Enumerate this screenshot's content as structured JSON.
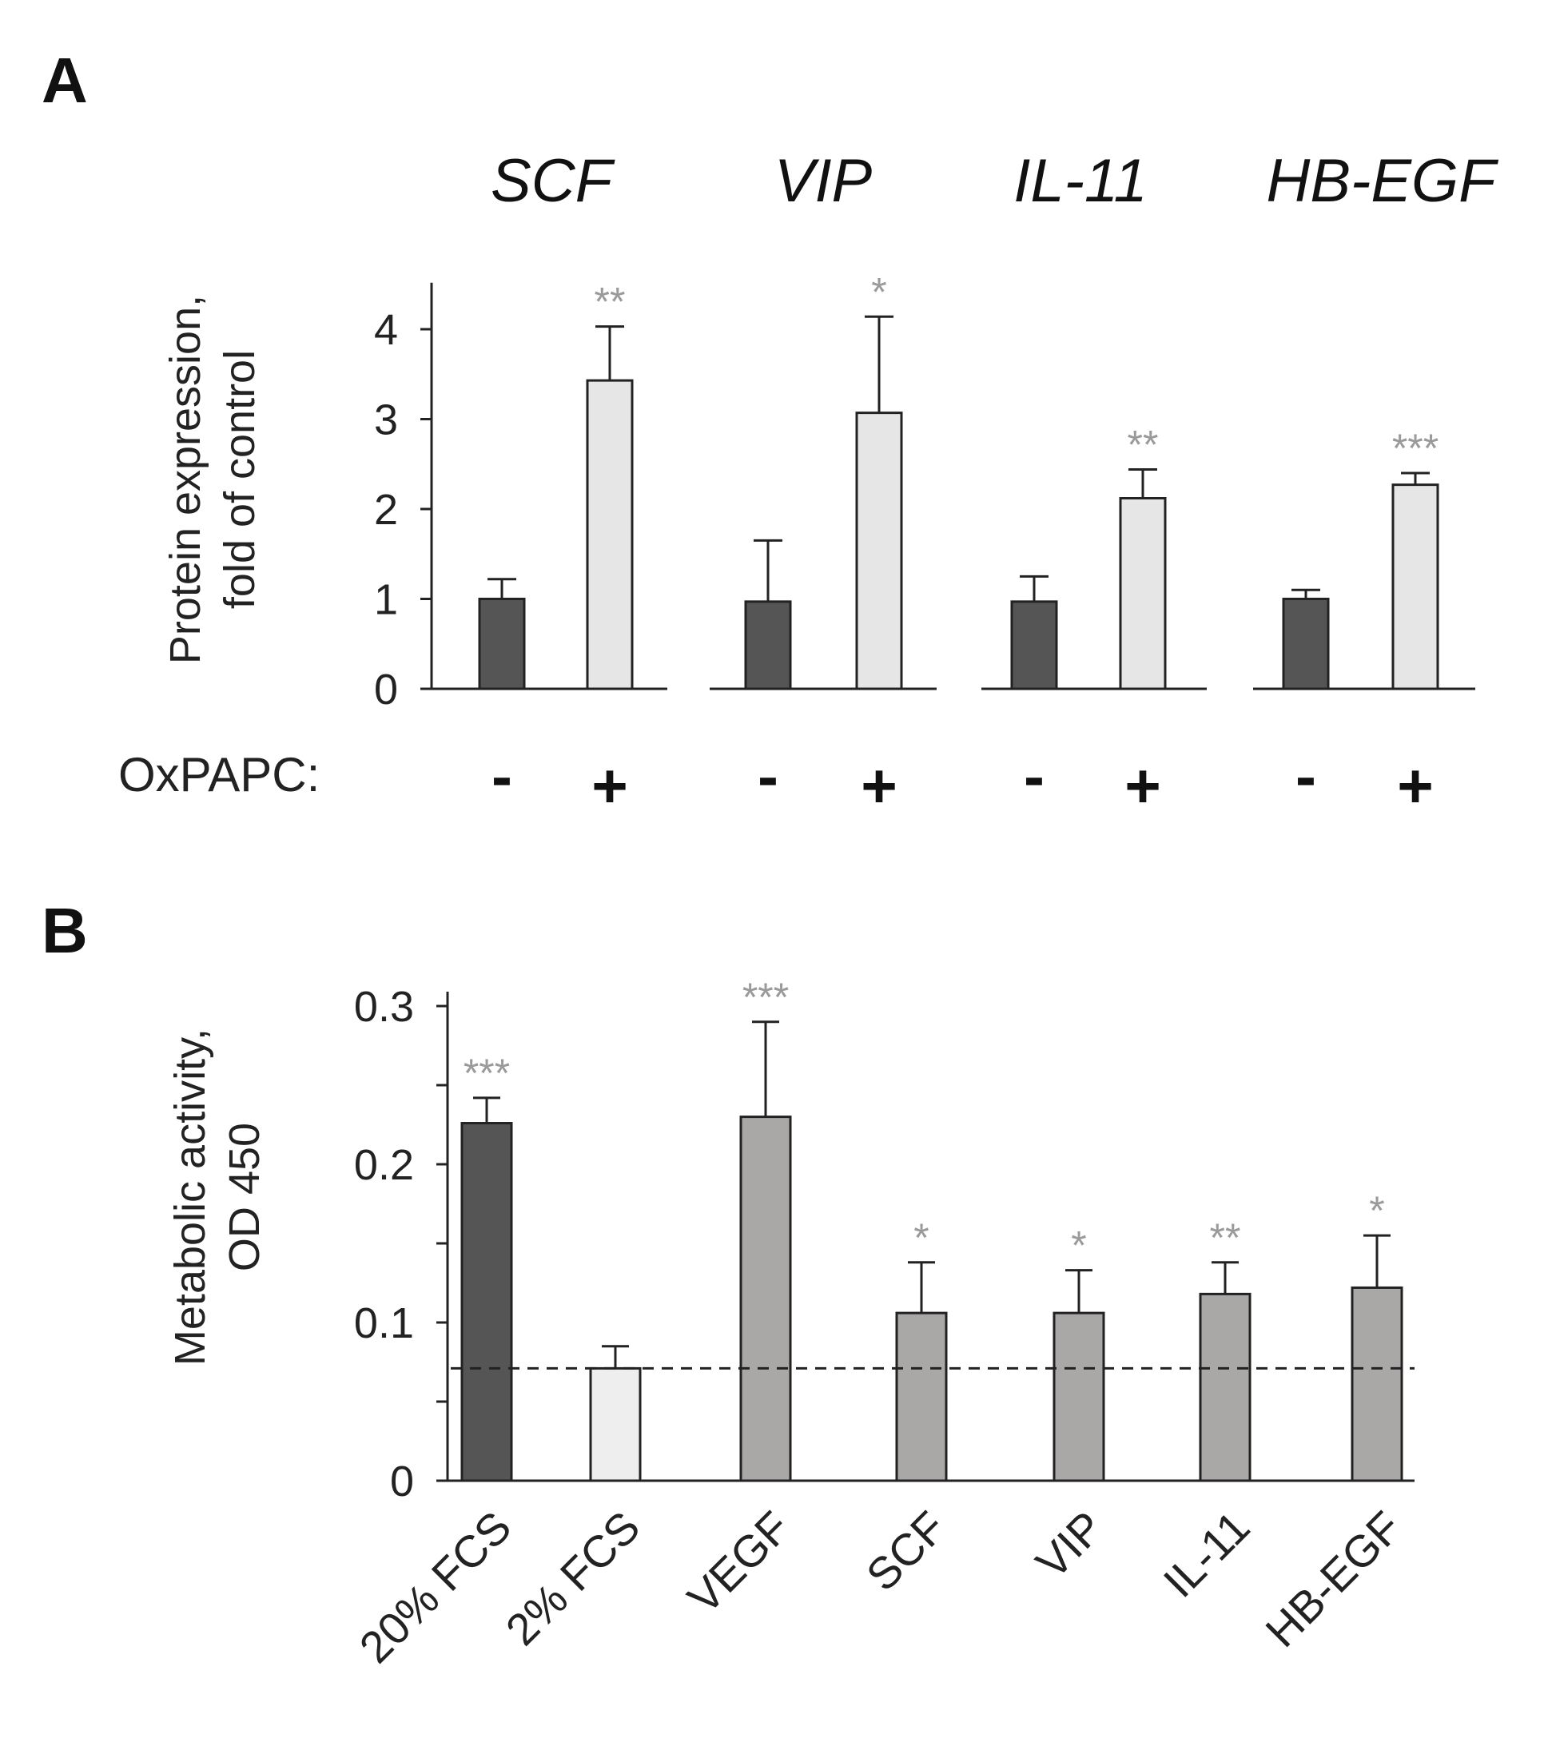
{
  "chart_data": [
    {
      "panel": "A",
      "type": "bar",
      "groups": [
        "SCF",
        "VIP",
        "IL-11",
        "HB-EGF"
      ],
      "condition_label": "OxPAPC:",
      "conditions": [
        "-",
        "+"
      ],
      "ylabel_lines": [
        "Protein expression,",
        "fold of control"
      ],
      "ylim": [
        0,
        4.5
      ],
      "yticks": [
        0,
        1,
        2,
        3,
        4
      ],
      "ytick_labels": [
        "0",
        "1",
        "2",
        "3",
        "4"
      ],
      "series": [
        {
          "name": "-",
          "color": "#555555",
          "values": [
            1.0,
            0.97,
            0.97,
            1.0
          ],
          "errors": [
            0.22,
            0.68,
            0.28,
            0.1
          ]
        },
        {
          "name": "+",
          "color": "#e6e6e6",
          "values": [
            3.43,
            3.07,
            2.12,
            2.27
          ],
          "errors": [
            0.6,
            1.07,
            0.32,
            0.13
          ]
        }
      ],
      "significance": [
        "**",
        "*",
        "**",
        "***"
      ]
    },
    {
      "panel": "B",
      "type": "bar",
      "categories": [
        "20% FCS",
        "2% FCS",
        "VEGF",
        "SCF",
        "VIP",
        "IL-11",
        "HB-EGF"
      ],
      "values": [
        0.226,
        0.071,
        0.23,
        0.106,
        0.106,
        0.118,
        0.122
      ],
      "errors": [
        0.016,
        0.014,
        0.06,
        0.032,
        0.027,
        0.02,
        0.033
      ],
      "colors": [
        "#555555",
        "#eeeeee",
        "#aaa7a7",
        "#aaa7a7",
        "#aaa7a7",
        "#aaa7a7",
        "#aaa7a7"
      ],
      "significance": [
        "***",
        "",
        "***",
        "*",
        "*",
        "**",
        "*"
      ],
      "reference_line": 0.071,
      "ylabel_lines": [
        "Metabolic activity,",
        "OD 450"
      ],
      "ylim": [
        0,
        0.3
      ],
      "yticks": [
        0,
        0.05,
        0.1,
        0.15,
        0.2,
        0.25,
        0.3
      ],
      "ytick_labels": [
        "0",
        "",
        "0.1",
        "",
        "0.2",
        "",
        "0.3"
      ]
    }
  ]
}
